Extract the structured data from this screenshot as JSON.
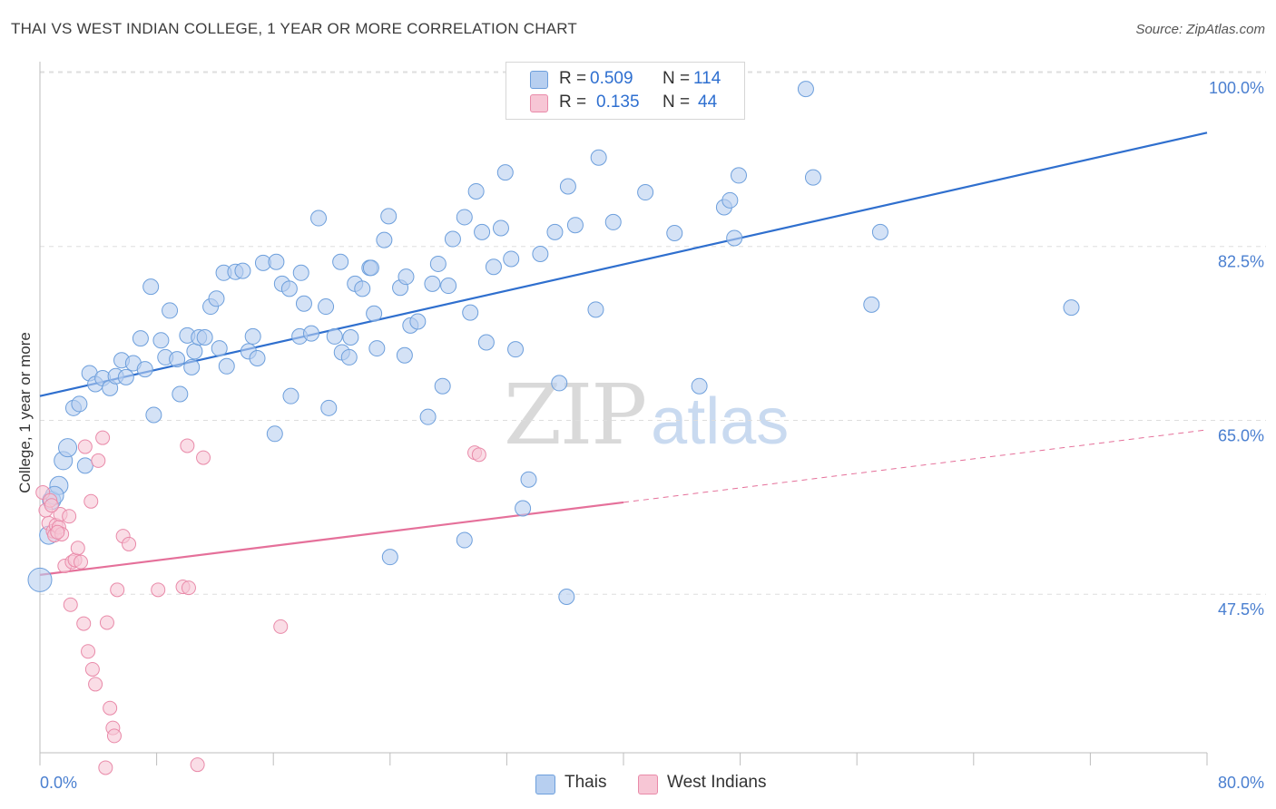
{
  "title": "THAI VS WEST INDIAN COLLEGE, 1 YEAR OR MORE CORRELATION CHART",
  "source": "Source: ZipAtlas.com",
  "watermark": {
    "zip": "ZIP",
    "atlas": "atlas"
  },
  "legend": {
    "r_label": "R =",
    "n_label": "N =",
    "thais": {
      "r": "0.509",
      "n": "114"
    },
    "west_indians": {
      "r": "0.135",
      "n": "44"
    }
  },
  "colors": {
    "thais_fill": "#b7cff0",
    "thais_stroke": "#6d9fdc",
    "thais_line": "#2f6fce",
    "wi_fill": "#f7c6d5",
    "wi_stroke": "#e98aa9",
    "wi_line": "#e5709a",
    "grid": "#dedede",
    "tick_label": "#4a7fd0"
  },
  "chart_data": {
    "type": "scatter",
    "title": "THAI VS WEST INDIAN COLLEGE, 1 YEAR OR MORE CORRELATION CHART",
    "xlabel": "",
    "ylabel": "College, 1 year or more",
    "xlim": [
      0,
      80
    ],
    "ylim": [
      31,
      100
    ],
    "x_tick_labels": [
      "0.0%",
      "80.0%"
    ],
    "y_ticks": [
      47.5,
      65.0,
      82.5,
      100.0
    ],
    "y_tick_labels": [
      "47.5%",
      "65.0%",
      "82.5%",
      "100.0%"
    ],
    "grid": true,
    "legend_position": "top-center",
    "series": [
      {
        "name": "Thais",
        "R": 0.509,
        "N": 114,
        "trend": {
          "x": [
            0,
            80
          ],
          "y": [
            69.0,
            95.5
          ],
          "style": "solid"
        },
        "points": [
          [
            0.0,
            50.5
          ],
          [
            0.8,
            58.5
          ],
          [
            0.6,
            55.0
          ],
          [
            1.3,
            60.0
          ],
          [
            1.6,
            62.5
          ],
          [
            1.9,
            63.8
          ],
          [
            2.3,
            67.8
          ],
          [
            2.7,
            68.2
          ],
          [
            3.1,
            62.0
          ],
          [
            3.4,
            71.3
          ],
          [
            3.8,
            70.2
          ],
          [
            4.3,
            70.8
          ],
          [
            4.8,
            69.8
          ],
          [
            5.2,
            71.0
          ],
          [
            5.6,
            72.6
          ],
          [
            5.9,
            70.9
          ],
          [
            6.4,
            72.3
          ],
          [
            6.9,
            74.8
          ],
          [
            7.2,
            71.7
          ],
          [
            7.6,
            80.0
          ],
          [
            7.8,
            67.1
          ],
          [
            8.3,
            74.6
          ],
          [
            8.6,
            72.9
          ],
          [
            8.9,
            77.6
          ],
          [
            9.4,
            72.7
          ],
          [
            9.6,
            69.2
          ],
          [
            10.1,
            75.1
          ],
          [
            10.4,
            71.9
          ],
          [
            10.6,
            73.5
          ],
          [
            10.9,
            74.9
          ],
          [
            11.3,
            74.9
          ],
          [
            11.7,
            78.0
          ],
          [
            12.1,
            78.8
          ],
          [
            12.3,
            73.8
          ],
          [
            12.6,
            81.4
          ],
          [
            12.8,
            72.0
          ],
          [
            13.4,
            81.5
          ],
          [
            13.9,
            81.6
          ],
          [
            14.3,
            73.5
          ],
          [
            14.6,
            75.0
          ],
          [
            14.9,
            72.8
          ],
          [
            15.3,
            82.4
          ],
          [
            16.1,
            65.2
          ],
          [
            16.2,
            82.5
          ],
          [
            16.6,
            80.3
          ],
          [
            17.1,
            79.8
          ],
          [
            17.2,
            69.0
          ],
          [
            17.8,
            75.0
          ],
          [
            17.9,
            81.4
          ],
          [
            18.1,
            78.3
          ],
          [
            18.6,
            75.3
          ],
          [
            19.1,
            86.9
          ],
          [
            19.6,
            78.0
          ],
          [
            19.8,
            67.8
          ],
          [
            20.2,
            75.0
          ],
          [
            20.6,
            82.5
          ],
          [
            20.7,
            73.4
          ],
          [
            21.2,
            72.9
          ],
          [
            21.3,
            74.9
          ],
          [
            21.6,
            80.3
          ],
          [
            22.1,
            79.8
          ],
          [
            22.6,
            81.9
          ],
          [
            22.7,
            81.9
          ],
          [
            22.9,
            77.3
          ],
          [
            23.1,
            73.8
          ],
          [
            23.6,
            84.7
          ],
          [
            23.9,
            87.1
          ],
          [
            24.7,
            79.9
          ],
          [
            25.0,
            73.1
          ],
          [
            25.1,
            81.0
          ],
          [
            25.4,
            76.1
          ],
          [
            25.9,
            76.5
          ],
          [
            26.6,
            66.9
          ],
          [
            26.9,
            80.3
          ],
          [
            27.3,
            82.3
          ],
          [
            27.6,
            70.0
          ],
          [
            28.0,
            80.1
          ],
          [
            28.3,
            84.8
          ],
          [
            29.1,
            87.0
          ],
          [
            29.5,
            77.4
          ],
          [
            29.9,
            89.6
          ],
          [
            30.3,
            85.5
          ],
          [
            30.6,
            74.4
          ],
          [
            31.1,
            82.0
          ],
          [
            31.6,
            85.9
          ],
          [
            31.9,
            91.5
          ],
          [
            32.3,
            82.8
          ],
          [
            32.6,
            73.7
          ],
          [
            33.1,
            57.7
          ],
          [
            33.5,
            60.6
          ],
          [
            34.3,
            83.3
          ],
          [
            35.3,
            85.5
          ],
          [
            35.6,
            70.3
          ],
          [
            36.1,
            48.8
          ],
          [
            36.2,
            90.1
          ],
          [
            36.7,
            86.2
          ],
          [
            38.1,
            77.7
          ],
          [
            38.3,
            93.0
          ],
          [
            39.3,
            86.5
          ],
          [
            41.5,
            89.5
          ],
          [
            43.5,
            85.4
          ],
          [
            45.2,
            70.0
          ],
          [
            46.9,
            88.0
          ],
          [
            47.3,
            88.7
          ],
          [
            47.6,
            84.9
          ],
          [
            47.9,
            91.2
          ],
          [
            52.5,
            99.9
          ],
          [
            53.0,
            91.0
          ],
          [
            57.0,
            78.2
          ],
          [
            57.6,
            85.5
          ],
          [
            70.7,
            77.9
          ],
          [
            29.1,
            54.5
          ],
          [
            24.0,
            52.8
          ],
          [
            1.0,
            59.0
          ]
        ]
      },
      {
        "name": "West Indians",
        "R": 0.135,
        "N": 44,
        "trend": {
          "x": [
            0,
            40
          ],
          "y": [
            51.0,
            58.3
          ],
          "style": "solid",
          "extended": {
            "x": [
              40,
              80
            ],
            "y": [
              58.3,
              65.6
            ],
            "style": "dashed"
          }
        },
        "points": [
          [
            0.2,
            59.3
          ],
          [
            0.4,
            57.5
          ],
          [
            0.6,
            56.2
          ],
          [
            0.7,
            58.5
          ],
          [
            0.9,
            55.4
          ],
          [
            1.0,
            55.0
          ],
          [
            1.1,
            56.0
          ],
          [
            1.3,
            55.8
          ],
          [
            1.4,
            57.1
          ],
          [
            1.5,
            55.1
          ],
          [
            1.7,
            51.9
          ],
          [
            2.0,
            56.9
          ],
          [
            2.1,
            48.0
          ],
          [
            2.2,
            52.3
          ],
          [
            2.4,
            52.5
          ],
          [
            2.6,
            53.7
          ],
          [
            2.8,
            52.3
          ],
          [
            3.0,
            46.1
          ],
          [
            3.1,
            63.9
          ],
          [
            3.3,
            43.3
          ],
          [
            3.5,
            58.4
          ],
          [
            3.6,
            41.5
          ],
          [
            3.8,
            40.0
          ],
          [
            4.0,
            62.5
          ],
          [
            4.3,
            64.8
          ],
          [
            4.6,
            46.2
          ],
          [
            4.8,
            37.6
          ],
          [
            5.0,
            35.6
          ],
          [
            5.1,
            34.8
          ],
          [
            5.3,
            49.5
          ],
          [
            5.7,
            54.9
          ],
          [
            6.1,
            54.1
          ],
          [
            4.5,
            31.6
          ],
          [
            8.1,
            49.5
          ],
          [
            9.8,
            49.8
          ],
          [
            10.2,
            49.7
          ],
          [
            10.1,
            64.0
          ],
          [
            10.8,
            31.9
          ],
          [
            11.2,
            62.8
          ],
          [
            16.5,
            45.8
          ],
          [
            29.8,
            63.3
          ],
          [
            30.1,
            63.1
          ],
          [
            1.2,
            55.3
          ],
          [
            0.8,
            58.0
          ]
        ]
      }
    ]
  }
}
